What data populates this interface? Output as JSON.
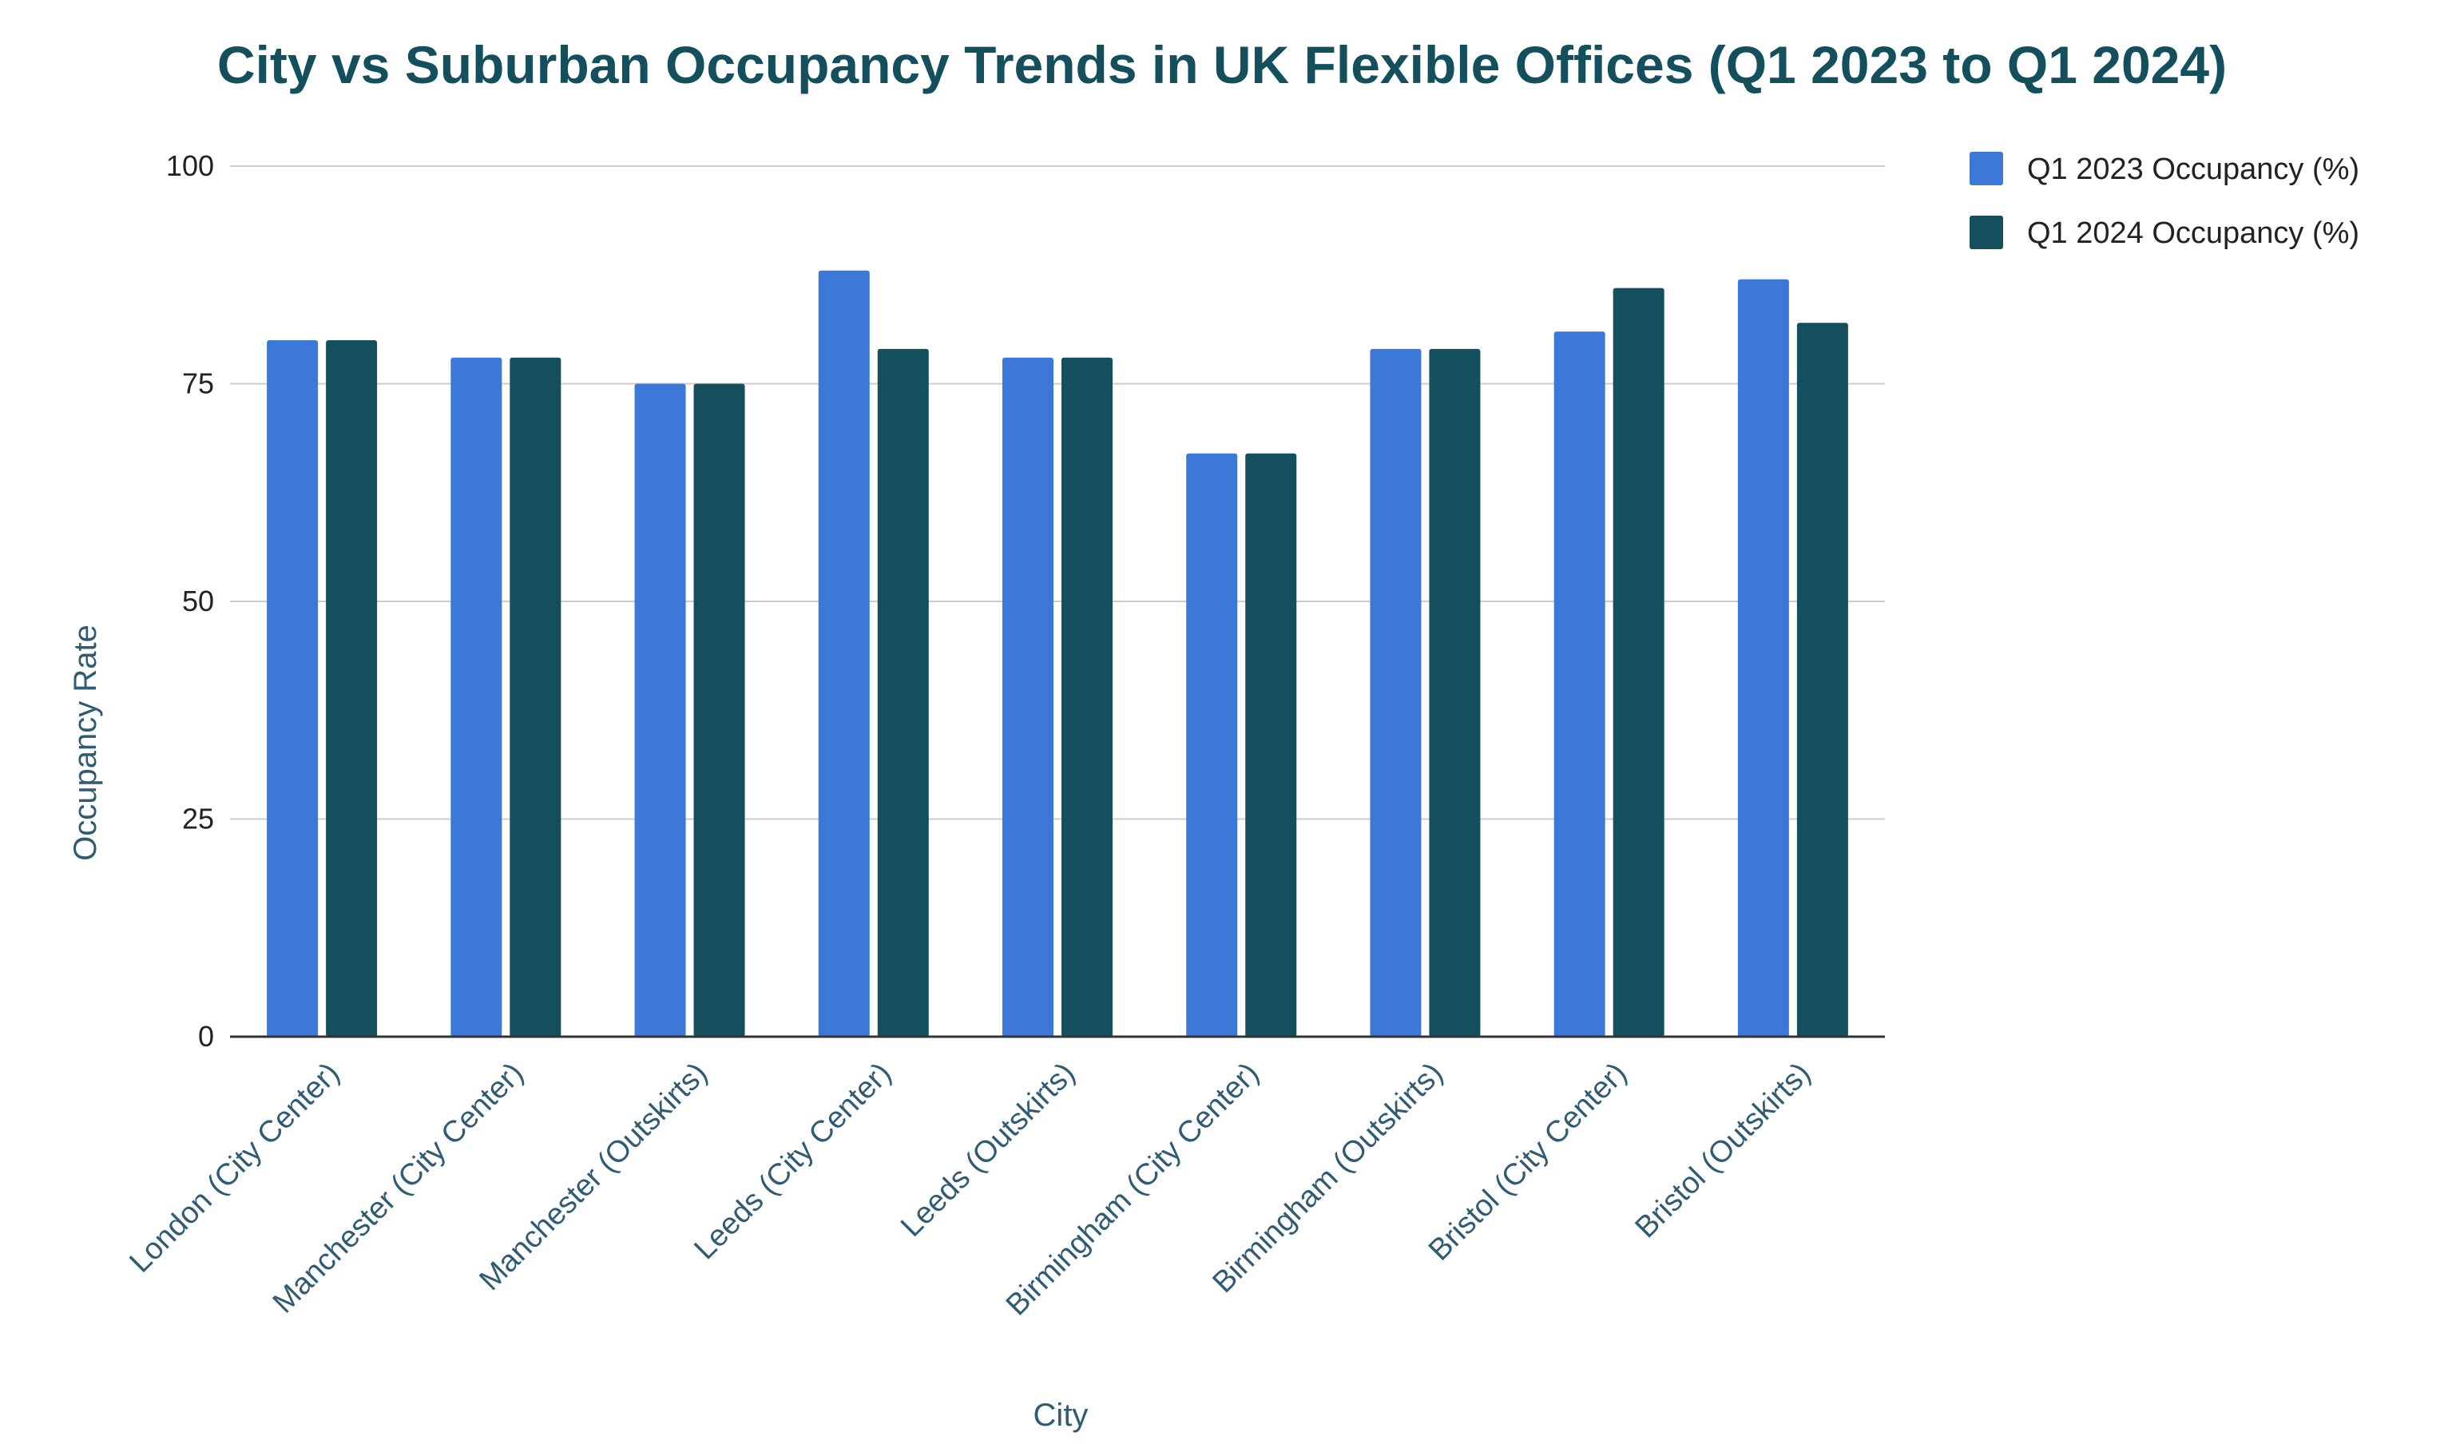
{
  "chart_data": {
    "type": "bar",
    "title": "City vs Suburban Occupancy Trends in UK Flexible Offices (Q1 2023 to Q1 2024)",
    "xlabel": "City",
    "ylabel": "Occupancy Rate",
    "ylim": [
      0,
      100
    ],
    "yticks": [
      0,
      25,
      50,
      75,
      100
    ],
    "grid": true,
    "legend_position": "top-right",
    "categories": [
      "London (City Center)",
      "Manchester (City Center)",
      "Manchester (Outskirts)",
      "Leeds (City Center)",
      "Leeds (Outskirts)",
      "Birmingham (City Center)",
      "Birmingham (Outskirts)",
      "Bristol (City Center)",
      "Bristol (Outskirts)"
    ],
    "series": [
      {
        "name": "Q1 2023 Occupancy (%)",
        "color": "#3c78d8",
        "values": [
          80,
          78,
          75,
          88,
          78,
          67,
          79,
          81,
          87
        ]
      },
      {
        "name": "Q1 2024 Occupancy (%)",
        "color": "#134f5c",
        "values": [
          80,
          78,
          75,
          79,
          78,
          67,
          79,
          86,
          82
        ]
      }
    ],
    "colors": {
      "title": "#134f5c",
      "gridline": "#cccccc",
      "baseline": "#333333"
    }
  }
}
